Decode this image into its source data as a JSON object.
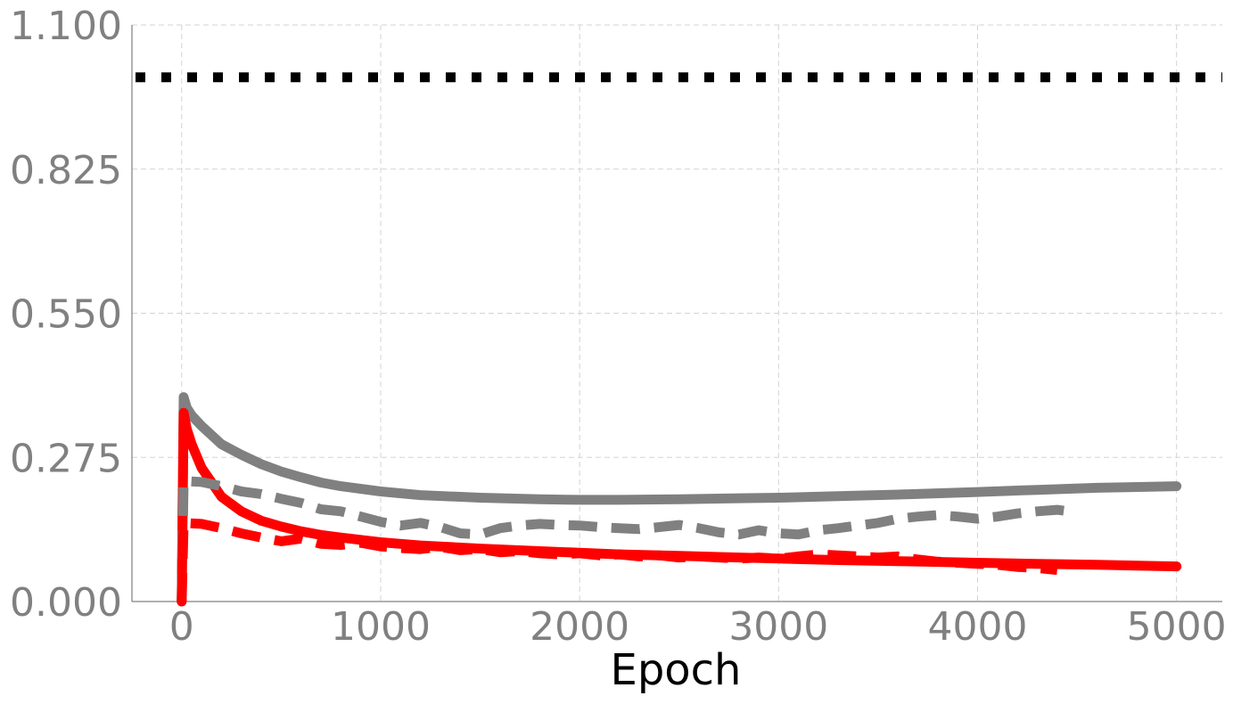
{
  "chart_data": {
    "type": "line",
    "xlabel": "Epoch",
    "ylabel": "",
    "xlim": [
      -250,
      5230
    ],
    "ylim": [
      0.0,
      1.1
    ],
    "xticks": [
      "0",
      "1000",
      "2000",
      "3000",
      "4000",
      "5000"
    ],
    "xtick_values": [
      0,
      1000,
      2000,
      3000,
      4000,
      5000
    ],
    "yticks": [
      "0.000",
      "0.275",
      "0.550",
      "0.825",
      "1.100"
    ],
    "ytick_values": [
      0.0,
      0.275,
      0.55,
      0.825,
      1.1
    ],
    "grid": true,
    "series": [
      {
        "style": "dotted",
        "color": "#000000",
        "x": [
          -250,
          5230
        ],
        "y": [
          1.0,
          1.0
        ]
      },
      {
        "style": "solid",
        "color": "#808080",
        "x": [
          0,
          10,
          25,
          50,
          100,
          200,
          300,
          400,
          500,
          600,
          700,
          800,
          1000,
          1200,
          1500,
          1800,
          2000,
          2200,
          2500,
          2800,
          3000,
          3300,
          3600,
          4000,
          4300,
          4600,
          5000
        ],
        "y": [
          0.0,
          0.39,
          0.37,
          0.355,
          0.335,
          0.3,
          0.28,
          0.262,
          0.248,
          0.237,
          0.227,
          0.22,
          0.21,
          0.203,
          0.198,
          0.195,
          0.194,
          0.194,
          0.195,
          0.197,
          0.198,
          0.201,
          0.204,
          0.209,
          0.213,
          0.217,
          0.22
        ]
      },
      {
        "style": "solid",
        "color": "#ff0000",
        "x": [
          0,
          10,
          25,
          50,
          100,
          200,
          300,
          400,
          500,
          600,
          700,
          800,
          1000,
          1200,
          1500,
          1800,
          2000,
          2200,
          2500,
          2800,
          3000,
          3300,
          3600,
          4000,
          4300,
          4600,
          5000
        ],
        "y": [
          0.0,
          0.36,
          0.33,
          0.3,
          0.255,
          0.2,
          0.172,
          0.154,
          0.143,
          0.134,
          0.127,
          0.122,
          0.113,
          0.107,
          0.101,
          0.096,
          0.093,
          0.09,
          0.087,
          0.084,
          0.082,
          0.079,
          0.077,
          0.074,
          0.072,
          0.07,
          0.067
        ]
      },
      {
        "style": "dashed",
        "color": "#808080",
        "x": [
          0,
          10,
          100,
          200,
          300,
          400,
          500,
          600,
          700,
          800,
          900,
          1000,
          1100,
          1200,
          1300,
          1400,
          1500,
          1600,
          1700,
          1800,
          1900,
          2000,
          2100,
          2200,
          2300,
          2400,
          2500,
          2600,
          2700,
          2800,
          2900,
          3000,
          3100,
          3200,
          3300,
          3400,
          3500,
          3600,
          3700,
          3800,
          3900,
          4000,
          4100,
          4200,
          4300,
          4400,
          4500
        ],
        "y": [
          0.0,
          0.23,
          0.228,
          0.22,
          0.21,
          0.205,
          0.196,
          0.188,
          0.176,
          0.172,
          0.162,
          0.152,
          0.145,
          0.15,
          0.142,
          0.13,
          0.128,
          0.14,
          0.145,
          0.148,
          0.146,
          0.145,
          0.142,
          0.14,
          0.138,
          0.142,
          0.146,
          0.14,
          0.132,
          0.128,
          0.136,
          0.13,
          0.128,
          0.136,
          0.14,
          0.145,
          0.15,
          0.158,
          0.162,
          0.165,
          0.162,
          0.158,
          0.162,
          0.168,
          0.172,
          0.175,
          0.17
        ]
      },
      {
        "style": "dashed",
        "color": "#ff0000",
        "x": [
          0,
          10,
          100,
          200,
          300,
          400,
          500,
          600,
          700,
          800,
          900,
          1000,
          1100,
          1200,
          1300,
          1400,
          1500,
          1600,
          1700,
          1800,
          1900,
          2000,
          2100,
          2200,
          2300,
          2400,
          2500,
          2600,
          2700,
          2800,
          2900,
          3000,
          3100,
          3200,
          3300,
          3400,
          3500,
          3600,
          3700,
          3800,
          3900,
          4000,
          4100,
          4200,
          4300,
          4400
        ],
        "y": [
          0.0,
          0.15,
          0.148,
          0.14,
          0.13,
          0.122,
          0.115,
          0.12,
          0.11,
          0.108,
          0.112,
          0.105,
          0.102,
          0.1,
          0.104,
          0.098,
          0.1,
          0.094,
          0.096,
          0.092,
          0.09,
          0.092,
          0.088,
          0.09,
          0.086,
          0.088,
          0.084,
          0.086,
          0.084,
          0.082,
          0.084,
          0.082,
          0.086,
          0.09,
          0.088,
          0.086,
          0.084,
          0.086,
          0.08,
          0.076,
          0.074,
          0.072,
          0.07,
          0.066,
          0.064,
          0.06
        ]
      }
    ]
  }
}
